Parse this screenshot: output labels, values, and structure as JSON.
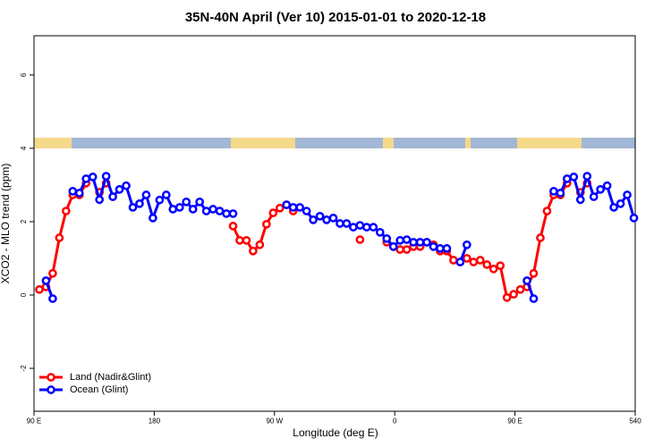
{
  "chart_data": {
    "type": "line",
    "title": "35N-40N April (Ver 10)   2015-01-01 to 2020-12-18",
    "xlabel": "Longitude (deg E)",
    "ylabel": "XCO2 - MLO trend (ppm)",
    "x": [
      94,
      99,
      104,
      109,
      114,
      119,
      124,
      129,
      134,
      139,
      144,
      149,
      154,
      159,
      164,
      169,
      174,
      179,
      184,
      189,
      194,
      199,
      204,
      209,
      214,
      219,
      224,
      229,
      234,
      239,
      244,
      249,
      254,
      259,
      264,
      269,
      274,
      279,
      284,
      289,
      294,
      299,
      304,
      309,
      314,
      319,
      324,
      329,
      334,
      339,
      344,
      349,
      354,
      359,
      364,
      369,
      374,
      379,
      384,
      389,
      394,
      399,
      404,
      409,
      414,
      419,
      424,
      429,
      434,
      439,
      444,
      449,
      454,
      459,
      464,
      469,
      474,
      479,
      484,
      489,
      494,
      499,
      504,
      509,
      514,
      519,
      524,
      529,
      534,
      539
    ],
    "series": [
      {
        "name": "Land (Nadir&Glint)",
        "color": "#ff0000",
        "values": [
          0.15,
          0.22,
          0.59,
          1.56,
          2.29,
          2.73,
          2.73,
          3.05,
          null,
          2.8,
          3.05,
          null,
          null,
          null,
          null,
          null,
          null,
          null,
          null,
          null,
          null,
          null,
          null,
          null,
          null,
          null,
          null,
          null,
          null,
          1.88,
          1.49,
          1.49,
          1.2,
          1.37,
          1.93,
          2.24,
          2.37,
          2.46,
          2.29,
          null,
          null,
          null,
          null,
          null,
          null,
          null,
          null,
          null,
          1.51,
          null,
          null,
          null,
          1.44,
          1.32,
          1.24,
          1.24,
          1.32,
          1.32,
          1.44,
          1.37,
          1.2,
          1.2,
          0.95,
          0.9,
          1.0,
          0.9,
          0.95,
          0.83,
          0.71,
          0.8,
          -0.07,
          0.02,
          0.15,
          0.22,
          0.59,
          1.56,
          2.29,
          2.73,
          2.73,
          3.05,
          null,
          2.8,
          3.05,
          null,
          null,
          null,
          null,
          null,
          null,
          null
        ]
      },
      {
        "name": "Ocean (Glint)",
        "color": "#0000ff",
        "values": [
          null,
          0.39,
          -0.1,
          null,
          null,
          2.83,
          2.78,
          3.17,
          3.22,
          2.6,
          3.24,
          2.68,
          2.88,
          2.98,
          2.39,
          2.49,
          2.73,
          2.1,
          2.59,
          2.73,
          2.34,
          2.39,
          2.54,
          2.34,
          2.54,
          2.29,
          2.34,
          2.29,
          2.22,
          2.22,
          null,
          null,
          null,
          null,
          null,
          null,
          null,
          2.46,
          2.39,
          2.39,
          2.29,
          2.05,
          2.15,
          2.05,
          2.1,
          1.95,
          1.95,
          1.85,
          1.9,
          1.85,
          1.85,
          1.71,
          1.54,
          1.32,
          1.49,
          1.51,
          1.44,
          1.44,
          1.44,
          1.32,
          1.27,
          1.27,
          null,
          0.9,
          1.37,
          null,
          null,
          null,
          null,
          null,
          null,
          null,
          null,
          0.39,
          -0.1,
          null,
          null,
          2.83,
          2.78,
          3.17,
          3.22,
          2.6,
          3.24,
          2.68,
          2.88,
          2.98,
          2.39,
          2.49,
          2.73,
          2.1
        ]
      }
    ],
    "xlim": [
      90,
      540
    ],
    "xticks": [
      {
        "value": 90,
        "label": "90 E"
      },
      180,
      {
        "value": 270,
        "label": "90 W"
      },
      0,
      {
        "value": 450,
        "label": "90 E"
      },
      540
    ],
    "ylim": [
      -3.17,
      7.07
    ],
    "yticks": [
      -2,
      0,
      2,
      4,
      6
    ],
    "legend": "bottom-left"
  }
}
